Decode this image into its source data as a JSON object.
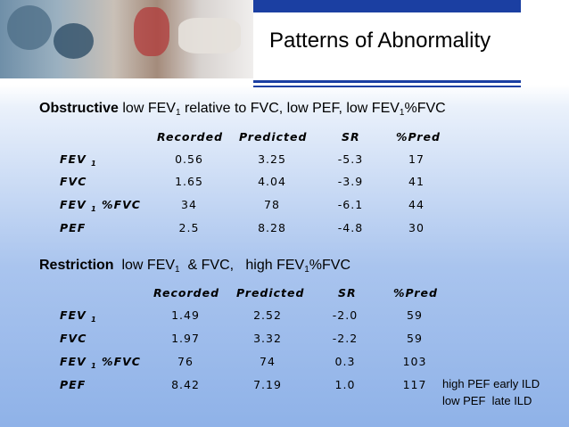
{
  "slide": {
    "title": "Patterns of Abnormality",
    "colors": {
      "accent_blue": "#1b3fa2",
      "background_bottom": "#8fb2e8"
    }
  },
  "obstructive": {
    "heading": "Obstructive",
    "desc_a": " low FEV",
    "desc_b": "1",
    "desc_c": " relative to FVC, low PEF, low FEV",
    "desc_d": "1",
    "desc_e": "%FVC",
    "columns": [
      "Recorded",
      "Predicted",
      "SR",
      "%Pred"
    ],
    "rows": [
      {
        "label": "FEV",
        "sub": "1",
        "suffix": "",
        "values": [
          "0.56",
          "3.25",
          "-5.3",
          "17"
        ]
      },
      {
        "label": "FVC",
        "sub": "",
        "suffix": "",
        "values": [
          "1.65",
          "4.04",
          "-3.9",
          "41"
        ]
      },
      {
        "label": "FEV",
        "sub": "1",
        "suffix": " %FVC",
        "values": [
          "34",
          "78",
          "-6.1",
          "44"
        ]
      },
      {
        "label": "PEF",
        "sub": "",
        "suffix": "",
        "values": [
          "2.5",
          "8.28",
          "-4.8",
          "30"
        ]
      }
    ]
  },
  "restriction": {
    "heading": "Restriction",
    "desc_a": "  low FEV",
    "desc_b": "1",
    "desc_c": "  & FVC,   high FEV",
    "desc_d": "1",
    "desc_e": "%FVC",
    "columns": [
      "Recorded",
      "Predicted",
      "SR",
      "%Pred"
    ],
    "rows": [
      {
        "label": "FEV",
        "sub": "1",
        "suffix": "",
        "values": [
          "1.49",
          "2.52",
          "-2.0",
          "59"
        ]
      },
      {
        "label": "FVC",
        "sub": "",
        "suffix": "",
        "values": [
          "1.97",
          "3.32",
          "-2.2",
          "59"
        ]
      },
      {
        "label": "FEV",
        "sub": "1",
        "suffix": " %FVC",
        "values": [
          "76",
          "74",
          "0.3",
          "103"
        ]
      },
      {
        "label": "PEF",
        "sub": "",
        "suffix": "",
        "values": [
          "8.42",
          "7.19",
          "1.0",
          "117"
        ]
      }
    ],
    "notes": [
      "high PEF early ILD",
      "low PEF  late ILD"
    ]
  }
}
